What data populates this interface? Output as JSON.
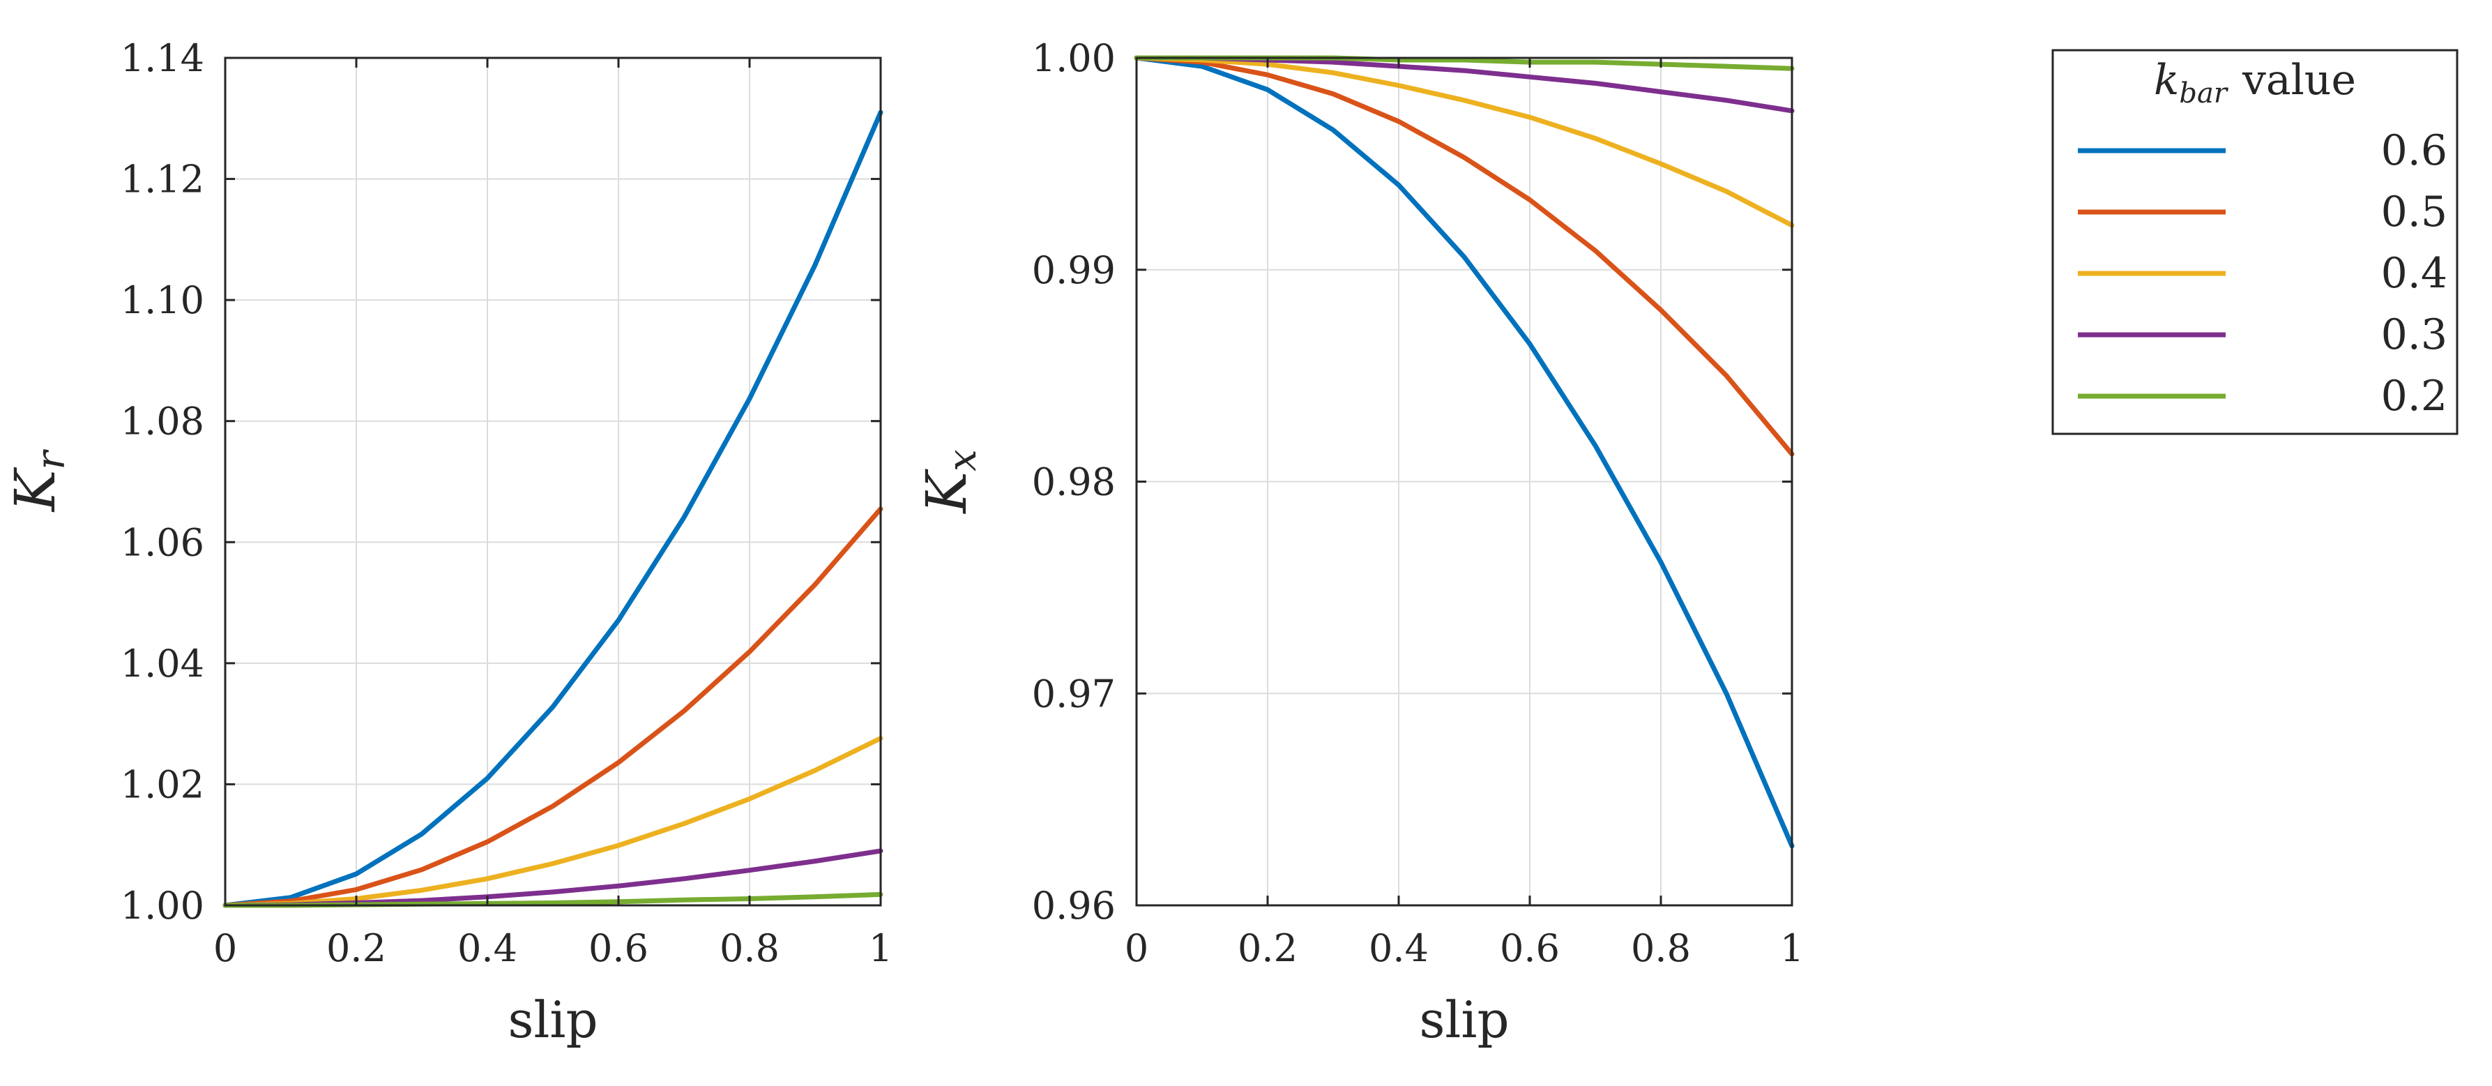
{
  "chart_data": [
    {
      "type": "line",
      "id": "kr",
      "xlabel": "slip",
      "ylabel_main": "K",
      "ylabel_sub": "r",
      "xlim": [
        0,
        1
      ],
      "ylim": [
        1.0,
        1.14
      ],
      "xticks": [
        0,
        0.2,
        0.4,
        0.6,
        0.8,
        1
      ],
      "xtick_labels": [
        "0",
        "0.2",
        "0.4",
        "0.6",
        "0.8",
        "1"
      ],
      "yticks": [
        1.0,
        1.02,
        1.04,
        1.06,
        1.08,
        1.1,
        1.12,
        1.14
      ],
      "ytick_labels": [
        "1.00",
        "1.02",
        "1.04",
        "1.06",
        "1.08",
        "1.10",
        "1.12",
        "1.14"
      ],
      "grid": true,
      "x": [
        0,
        0.1,
        0.2,
        0.3,
        0.4,
        0.5,
        0.6,
        0.7,
        0.8,
        0.9,
        1.0
      ],
      "series": [
        {
          "name": "0.6",
          "color": "#0072BD",
          "values": [
            1.0,
            1.0013,
            1.0052,
            1.0118,
            1.021,
            1.0328,
            1.0471,
            1.0641,
            1.0837,
            1.1058,
            1.131
          ]
        },
        {
          "name": "0.5",
          "color": "#D95319",
          "values": [
            1.0,
            1.0007,
            1.0026,
            1.0059,
            1.0105,
            1.0164,
            1.0236,
            1.0321,
            1.0419,
            1.053,
            1.0655
          ]
        },
        {
          "name": "0.4",
          "color": "#EDB120",
          "values": [
            1.0,
            1.0003,
            1.0011,
            1.0025,
            1.0044,
            1.0069,
            1.0099,
            1.0135,
            1.0176,
            1.0223,
            1.0276
          ]
        },
        {
          "name": "0.3",
          "color": "#7E2F8E",
          "values": [
            1.0,
            1.0001,
            1.0004,
            1.0008,
            1.0014,
            1.0022,
            1.0032,
            1.0044,
            1.0058,
            1.0073,
            1.009
          ]
        },
        {
          "name": "0.2",
          "color": "#77AC30",
          "values": [
            1.0,
            1.0,
            1.0001,
            1.0002,
            1.0003,
            1.0004,
            1.0006,
            1.0009,
            1.0011,
            1.0014,
            1.0018
          ]
        }
      ]
    },
    {
      "type": "line",
      "id": "kx",
      "xlabel": "slip",
      "ylabel_main": "K",
      "ylabel_sub": "x",
      "xlim": [
        0,
        1
      ],
      "ylim": [
        0.96,
        1.0
      ],
      "xticks": [
        0,
        0.2,
        0.4,
        0.6,
        0.8,
        1
      ],
      "xtick_labels": [
        "0",
        "0.2",
        "0.4",
        "0.6",
        "0.8",
        "1"
      ],
      "yticks": [
        0.96,
        0.97,
        0.98,
        0.99,
        1.0
      ],
      "ytick_labels": [
        "0.96",
        "0.97",
        "0.98",
        "0.99",
        "1.00"
      ],
      "grid": true,
      "x": [
        0,
        0.1,
        0.2,
        0.3,
        0.4,
        0.5,
        0.6,
        0.7,
        0.8,
        0.9,
        1.0
      ],
      "series": [
        {
          "name": "0.6",
          "color": "#0072BD",
          "values": [
            1.0,
            0.9996,
            0.9985,
            0.9966,
            0.994,
            0.9906,
            0.9865,
            0.9817,
            0.9762,
            0.97,
            0.9628
          ]
        },
        {
          "name": "0.5",
          "color": "#D95319",
          "values": [
            1.0,
            0.9998,
            0.9992,
            0.9983,
            0.997,
            0.9953,
            0.9933,
            0.9909,
            0.9881,
            0.985,
            0.9813
          ]
        },
        {
          "name": "0.4",
          "color": "#EDB120",
          "values": [
            1.0,
            0.9999,
            0.9997,
            0.9993,
            0.9987,
            0.998,
            0.9972,
            0.9962,
            0.995,
            0.9937,
            0.9921
          ]
        },
        {
          "name": "0.3",
          "color": "#7E2F8E",
          "values": [
            1.0,
            1.0,
            0.9999,
            0.9998,
            0.9996,
            0.9994,
            0.9991,
            0.9988,
            0.9984,
            0.998,
            0.9975
          ]
        },
        {
          "name": "0.2",
          "color": "#77AC30",
          "values": [
            1.0,
            1.0,
            1.0,
            1.0,
            0.9999,
            0.9999,
            0.9998,
            0.9998,
            0.9997,
            0.9996,
            0.9995
          ]
        }
      ]
    }
  ],
  "legend": {
    "title_main": "k",
    "title_sub": "bar",
    "title_suffix": "value",
    "entries": [
      {
        "label": "0.6",
        "color": "#0072BD"
      },
      {
        "label": "0.5",
        "color": "#D95319"
      },
      {
        "label": "0.4",
        "color": "#EDB120"
      },
      {
        "label": "0.3",
        "color": "#7E2F8E"
      },
      {
        "label": "0.2",
        "color": "#77AC30"
      }
    ]
  }
}
